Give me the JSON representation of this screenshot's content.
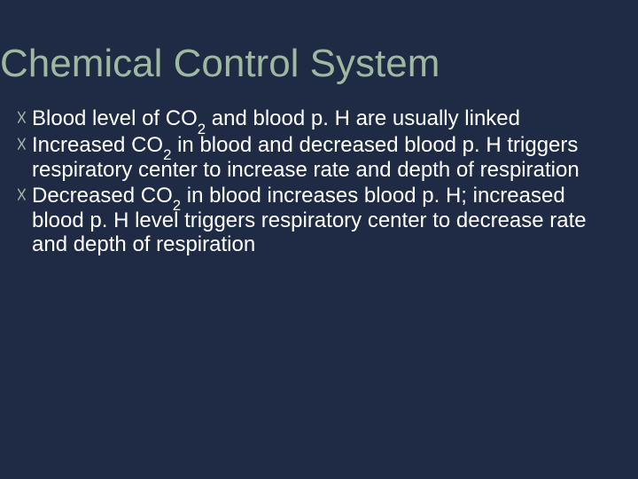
{
  "slide": {
    "background_color": "#1f2a44",
    "title": {
      "text": "Chemical Control System",
      "color": "#9fb8a0",
      "fontsize": 44,
      "font_weight": 400
    },
    "bullet_style": {
      "icon": "☓",
      "icon_color": "#9fb8a0",
      "text_color": "#ffffff",
      "fontsize": 24,
      "font_weight": 400
    },
    "bullets": [
      {
        "html": "Blood level of CO<sub>2</sub> and blood p. H are usually linked"
      },
      {
        "html": "Increased CO<sub>2</sub> in blood and decreased blood p. H triggers respiratory center to increase rate and depth of respiration"
      },
      {
        "html": "Decreased CO<sub>2</sub> in blood increases blood p. H; increased blood p. H level triggers respiratory center to decrease rate and depth of respiration"
      }
    ]
  }
}
